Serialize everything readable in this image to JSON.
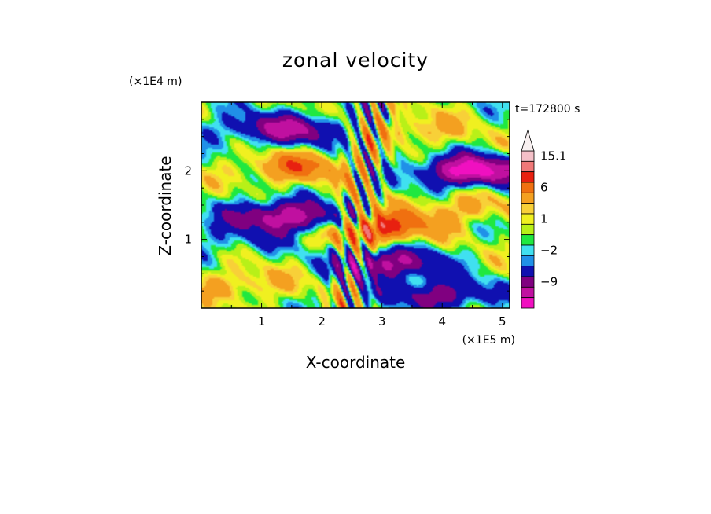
{
  "chart_data": {
    "type": "heatmap",
    "title": "zonal velocity",
    "xlabel": "X-coordinate",
    "ylabel": "Z-coordinate",
    "x_scale_label": "(×1E5 m)",
    "y_scale_label": "(×1E4 m)",
    "time_label": "t=172800 s",
    "x_range": [
      0,
      5.12
    ],
    "y_range": [
      0,
      3.0
    ],
    "x_ticks": [
      "1",
      "2",
      "3",
      "4",
      "5"
    ],
    "y_ticks": [
      "1",
      "2"
    ],
    "colorbar": {
      "levels": [
        15.1,
        12,
        9,
        6,
        3,
        2,
        1,
        0,
        -1,
        -2,
        -3,
        -6,
        -9,
        -12,
        -15
      ],
      "colors": [
        "#f4c0c8",
        "#f07878",
        "#e82010",
        "#f07010",
        "#f4a020",
        "#f8d038",
        "#f0f020",
        "#b8f018",
        "#20e840",
        "#40e0f0",
        "#2090e8",
        "#1010b0",
        "#800080",
        "#c010a0",
        "#f010c0"
      ],
      "labels": [
        "15.1",
        "6",
        "1",
        "−2",
        "−9"
      ],
      "label_values": [
        15.1,
        6,
        1,
        -2,
        -9
      ],
      "extend_top": true
    },
    "field_features": [
      {
        "kind": "jet",
        "x": 1.6,
        "z": 2.05,
        "value": 7
      },
      {
        "kind": "jet",
        "x": 4.3,
        "z": 1.45,
        "value": 4
      },
      {
        "kind": "jet",
        "x": 2.9,
        "z": 1.2,
        "value": 8
      },
      {
        "kind": "jet",
        "x": 2.55,
        "z": 1.15,
        "value": 12
      },
      {
        "kind": "jet",
        "x": 4.5,
        "z": 2.0,
        "value": -14
      },
      {
        "kind": "jet",
        "x": 1.3,
        "z": 1.35,
        "value": -10
      },
      {
        "kind": "jet",
        "x": 2.3,
        "z": 1.2,
        "value": -12
      },
      {
        "kind": "jet",
        "x": 0.6,
        "z": 1.0,
        "value": -3
      },
      {
        "kind": "jet",
        "x": 1.5,
        "z": 2.6,
        "value": -9
      },
      {
        "kind": "jet",
        "x": 4.0,
        "z": 0.2,
        "value": -8
      },
      {
        "kind": "jet",
        "x": 3.1,
        "z": 0.65,
        "value": -10
      },
      {
        "kind": "jet",
        "x": 0.5,
        "z": 2.65,
        "value": -2
      },
      {
        "kind": "jet",
        "x": 3.6,
        "z": 2.6,
        "value": 4
      },
      {
        "kind": "jet",
        "x": 0.7,
        "z": 0.35,
        "value": 4
      }
    ]
  }
}
